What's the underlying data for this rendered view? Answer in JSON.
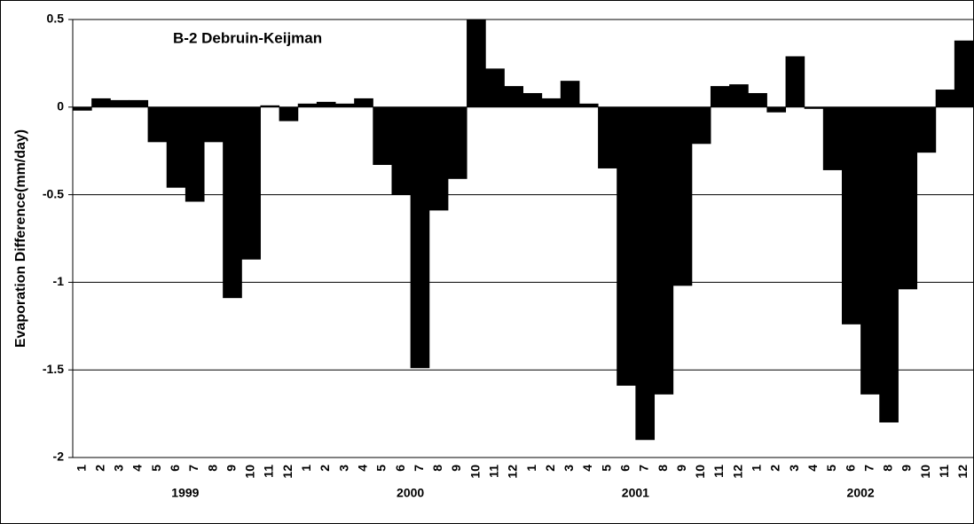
{
  "chart_data": {
    "type": "bar",
    "title": "B-2 Debruin-Keijman",
    "y_label": "Evaporation Difference(mm/day)",
    "categories": [
      "1",
      "2",
      "3",
      "4",
      "5",
      "6",
      "7",
      "8",
      "9",
      "10",
      "11",
      "12",
      "1",
      "2",
      "3",
      "4",
      "5",
      "6",
      "7",
      "8",
      "9",
      "10",
      "11",
      "12",
      "1",
      "2",
      "3",
      "4",
      "5",
      "6",
      "7",
      "8",
      "9",
      "10",
      "11",
      "12",
      "1",
      "2",
      "3",
      "4",
      "5",
      "6",
      "7",
      "8",
      "9",
      "10",
      "11",
      "12"
    ],
    "years": [
      "1999",
      "2000",
      "2001",
      "2002"
    ],
    "values": [
      -0.02,
      0.05,
      0.04,
      0.04,
      -0.2,
      -0.46,
      -0.54,
      -0.2,
      -1.09,
      -0.87,
      0.01,
      -0.08,
      0.02,
      0.03,
      0.02,
      0.05,
      -0.33,
      -0.5,
      -1.49,
      -0.59,
      -0.41,
      0.5,
      0.22,
      0.12,
      0.08,
      0.05,
      0.15,
      0.02,
      -0.35,
      -1.59,
      -1.9,
      -1.64,
      -1.02,
      -0.21,
      0.12,
      0.13,
      0.08,
      -0.03,
      0.29,
      -0.01,
      -0.36,
      -1.24,
      -1.64,
      -1.8,
      -1.04,
      -0.26,
      0.1,
      0.38
    ],
    "color": "#000000",
    "ylim": [
      -2,
      0.5
    ],
    "yticks": [
      0.5,
      0,
      -0.5,
      -1,
      -1.5,
      -2
    ],
    "grid": true
  }
}
